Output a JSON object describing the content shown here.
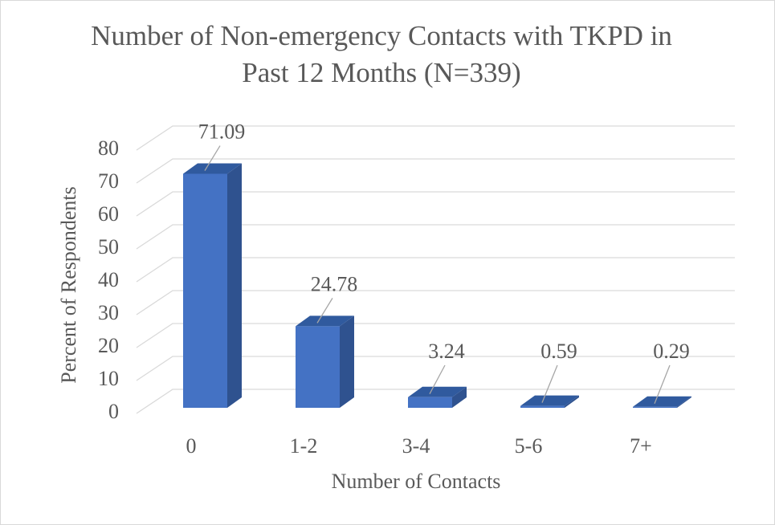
{
  "chart_data": {
    "type": "bar3d",
    "title": "Number of Non-emergency Contacts with TKPD in Past 12 Months (N=339)",
    "x_label": "Number of Contacts",
    "y_label": "Percent of Respondents",
    "categories": [
      "0",
      "1-2",
      "3-4",
      "5-6",
      "7+"
    ],
    "values": [
      71.09,
      24.78,
      3.24,
      0.59,
      0.29
    ],
    "color": "#4472c4",
    "ylim": [
      0,
      80
    ],
    "yticks": [
      0,
      10,
      20,
      30,
      40,
      50,
      60,
      70,
      80
    ],
    "grid": true
  }
}
